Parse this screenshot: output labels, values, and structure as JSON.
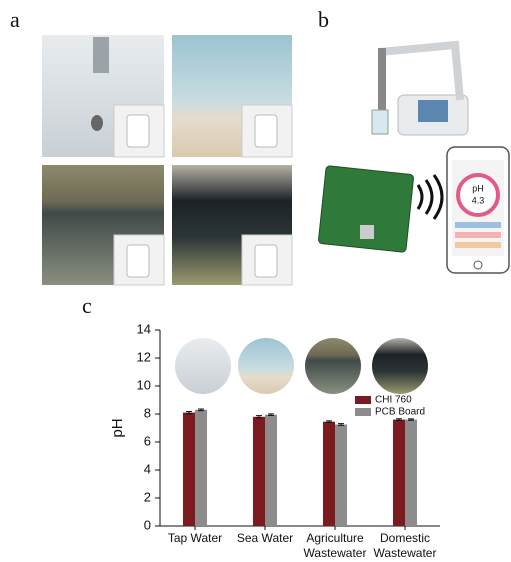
{
  "panels": {
    "a": "a",
    "b": "b",
    "c": "c"
  },
  "phone_display": {
    "label": "pH",
    "value": "4.3"
  },
  "chart_data": {
    "type": "bar",
    "y_label": "pH",
    "categories": [
      "Tap Water",
      "Sea Water",
      "Agriculture Wastewater",
      "Domestic Wastewater"
    ],
    "series": [
      {
        "name": "CHI 760",
        "color": "#7b1a1f",
        "values": [
          8.1,
          7.8,
          7.45,
          7.6
        ],
        "errors": [
          0.08,
          0.08,
          0.06,
          0.06
        ]
      },
      {
        "name": "PCB Board",
        "color": "#8c8c8c",
        "values": [
          8.3,
          7.95,
          7.25,
          7.6
        ],
        "errors": [
          0.06,
          0.06,
          0.06,
          0.05
        ]
      }
    ],
    "ylim": [
      0,
      14
    ],
    "yticks": [
      0,
      2,
      4,
      6,
      8,
      10,
      12,
      14
    ],
    "legend": "upper right"
  }
}
